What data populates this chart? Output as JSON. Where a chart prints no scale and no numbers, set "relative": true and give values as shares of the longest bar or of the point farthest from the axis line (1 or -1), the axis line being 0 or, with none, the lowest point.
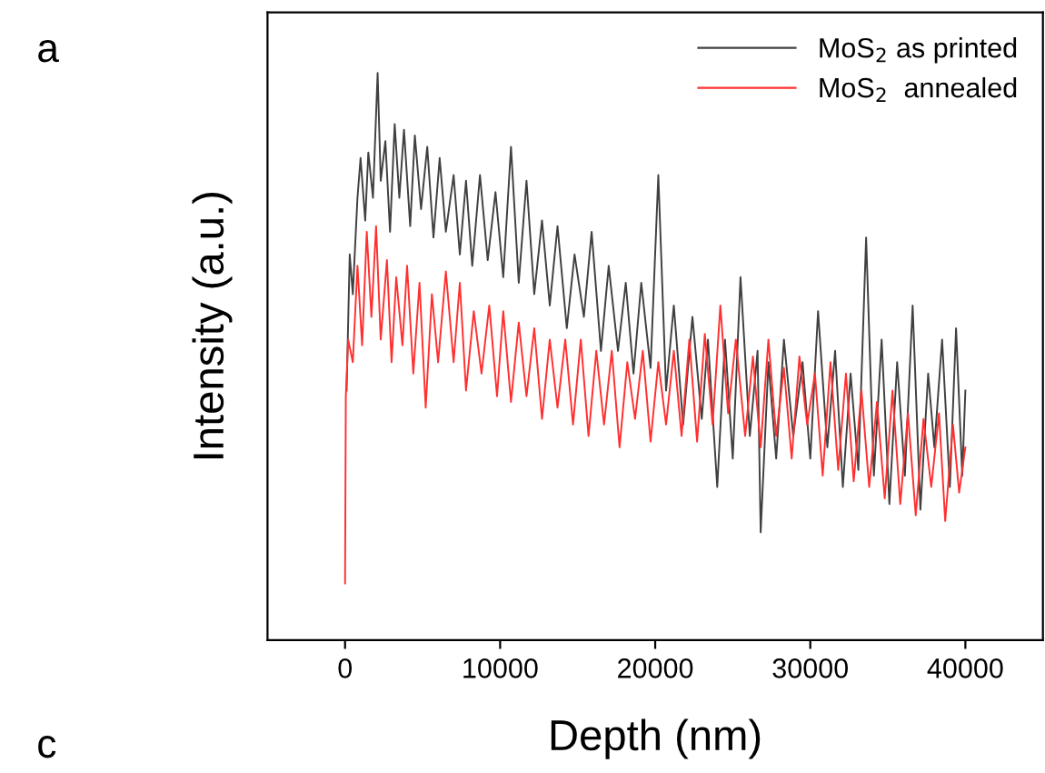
{
  "chart_data": {
    "type": "line",
    "relative": true,
    "xlabel": "Depth (nm)",
    "ylabel": "Intensity (a.u.)",
    "xlim": [
      -5000,
      45000
    ],
    "xticks": [
      0,
      10000,
      20000,
      30000,
      40000
    ],
    "tick_labels": "x",
    "grid": false,
    "legend": "top right",
    "marker": "none",
    "line_style": "solid",
    "annotations": [
      "a",
      "c"
    ],
    "series": [
      {
        "name": "MoS$_{2}$ as printed",
        "color": "#404040",
        "x": [
          100,
          300,
          500,
          800,
          1000,
          1300,
          1500,
          1800,
          2100,
          2300,
          2600,
          2900,
          3200,
          3500,
          3800,
          4200,
          4500,
          4900,
          5300,
          5700,
          6100,
          6500,
          7000,
          7400,
          7800,
          8200,
          8700,
          9200,
          9700,
          10200,
          10700,
          11200,
          11700,
          12200,
          12700,
          13200,
          13700,
          14300,
          14800,
          15400,
          15900,
          16500,
          17000,
          17600,
          18100,
          18600,
          19100,
          19700,
          20200,
          20700,
          21200,
          21800,
          22400,
          23000,
          23400,
          24000,
          24500,
          25000,
          25500,
          26100,
          26600,
          26800,
          27300,
          27800,
          28300,
          28900,
          29500,
          30000,
          30500,
          31100,
          31600,
          32100,
          32600,
          33100,
          33600,
          34100,
          34600,
          35100,
          35600,
          36100,
          36600,
          37100,
          37600,
          38000,
          38500,
          39000,
          39400,
          39800,
          40000
        ],
        "values": [
          0.44,
          0.68,
          0.61,
          0.78,
          0.85,
          0.74,
          0.86,
          0.78,
          1.0,
          0.81,
          0.88,
          0.72,
          0.91,
          0.78,
          0.9,
          0.73,
          0.89,
          0.76,
          0.87,
          0.71,
          0.85,
          0.72,
          0.82,
          0.68,
          0.81,
          0.66,
          0.82,
          0.67,
          0.79,
          0.64,
          0.87,
          0.63,
          0.81,
          0.61,
          0.74,
          0.59,
          0.73,
          0.55,
          0.68,
          0.57,
          0.72,
          0.51,
          0.66,
          0.51,
          0.63,
          0.47,
          0.63,
          0.48,
          0.82,
          0.44,
          0.59,
          0.38,
          0.57,
          0.39,
          0.53,
          0.27,
          0.53,
          0.32,
          0.64,
          0.36,
          0.51,
          0.19,
          0.49,
          0.32,
          0.53,
          0.36,
          0.49,
          0.32,
          0.58,
          0.34,
          0.51,
          0.27,
          0.47,
          0.3,
          0.71,
          0.29,
          0.53,
          0.24,
          0.49,
          0.29,
          0.59,
          0.23,
          0.47,
          0.34,
          0.53,
          0.27,
          0.55,
          0.29,
          0.44
        ]
      },
      {
        "name": "MoS$_{2}$  annealed",
        "color": "#ff3030",
        "x": [
          0,
          50,
          200,
          500,
          800,
          1100,
          1400,
          1700,
          2000,
          2300,
          2700,
          3000,
          3300,
          3700,
          4000,
          4400,
          4800,
          5200,
          5600,
          6000,
          6500,
          7000,
          7400,
          7800,
          8300,
          8800,
          9300,
          9800,
          10200,
          10700,
          11200,
          11700,
          12200,
          12700,
          13200,
          13700,
          14200,
          14700,
          15200,
          15700,
          16200,
          16700,
          17200,
          17700,
          18200,
          18700,
          19200,
          19700,
          20200,
          20700,
          21200,
          21700,
          22200,
          22700,
          23200,
          23700,
          24200,
          24700,
          25200,
          25800,
          26300,
          26800,
          27300,
          27800,
          28300,
          28800,
          29300,
          29800,
          30300,
          30800,
          31300,
          31800,
          32300,
          32800,
          33300,
          33800,
          34300,
          34800,
          35300,
          35800,
          36300,
          36800,
          37300,
          37800,
          38300,
          38700,
          39200,
          39600,
          40000
        ],
        "values": [
          0.1,
          0.43,
          0.53,
          0.49,
          0.66,
          0.52,
          0.72,
          0.57,
          0.73,
          0.53,
          0.67,
          0.49,
          0.64,
          0.52,
          0.66,
          0.47,
          0.63,
          0.41,
          0.61,
          0.49,
          0.65,
          0.49,
          0.63,
          0.44,
          0.58,
          0.47,
          0.59,
          0.43,
          0.58,
          0.42,
          0.56,
          0.43,
          0.55,
          0.39,
          0.53,
          0.41,
          0.53,
          0.38,
          0.53,
          0.36,
          0.51,
          0.38,
          0.51,
          0.34,
          0.49,
          0.39,
          0.51,
          0.35,
          0.49,
          0.38,
          0.51,
          0.36,
          0.53,
          0.35,
          0.54,
          0.38,
          0.59,
          0.4,
          0.53,
          0.36,
          0.5,
          0.34,
          0.53,
          0.36,
          0.48,
          0.32,
          0.5,
          0.38,
          0.47,
          0.29,
          0.49,
          0.3,
          0.47,
          0.28,
          0.44,
          0.27,
          0.42,
          0.25,
          0.44,
          0.24,
          0.4,
          0.22,
          0.39,
          0.27,
          0.4,
          0.21,
          0.38,
          0.26,
          0.34
        ]
      }
    ]
  }
}
